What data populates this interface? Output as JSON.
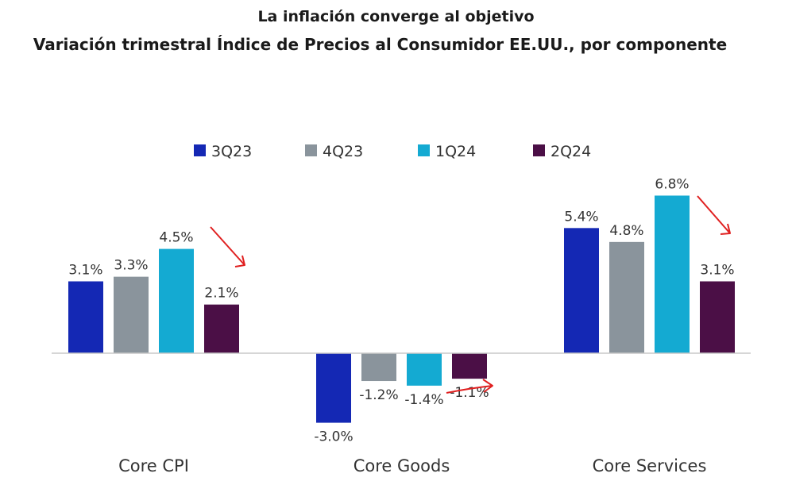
{
  "chart_data": {
    "type": "bar",
    "title": "La inflación converge al objetivo",
    "subtitle": "Variación trimestral Índice de Precios al Consumidor EE.UU., por componente",
    "categories": [
      "Core CPI",
      "Core Goods",
      "Core Services"
    ],
    "series": [
      {
        "name": "3Q23",
        "color": "#1428b4",
        "values": [
          3.1,
          -3.0,
          5.4
        ],
        "labels": [
          "3.1%",
          "-3.0%",
          "5.4%"
        ]
      },
      {
        "name": "4Q23",
        "color": "#8a949c",
        "values": [
          3.3,
          -1.2,
          4.8
        ],
        "labels": [
          "3.3%",
          "-1.2%",
          "4.8%"
        ]
      },
      {
        "name": "1Q24",
        "color": "#14aad2",
        "values": [
          4.5,
          -1.4,
          6.8
        ],
        "labels": [
          "4.5%",
          "-1.4%",
          "6.8%"
        ]
      },
      {
        "name": "2Q24",
        "color": "#4b0f46",
        "values": [
          2.1,
          -1.1,
          3.1
        ],
        "labels": [
          "2.1%",
          "-1.1%",
          "3.1%"
        ]
      }
    ],
    "ylim": [
      -3.0,
      6.8
    ],
    "legend": "top-center",
    "grid": false,
    "annotations": [
      "trend-arrow",
      "trend-arrow",
      "trend-arrow"
    ],
    "annotation_color": "#e02020"
  }
}
